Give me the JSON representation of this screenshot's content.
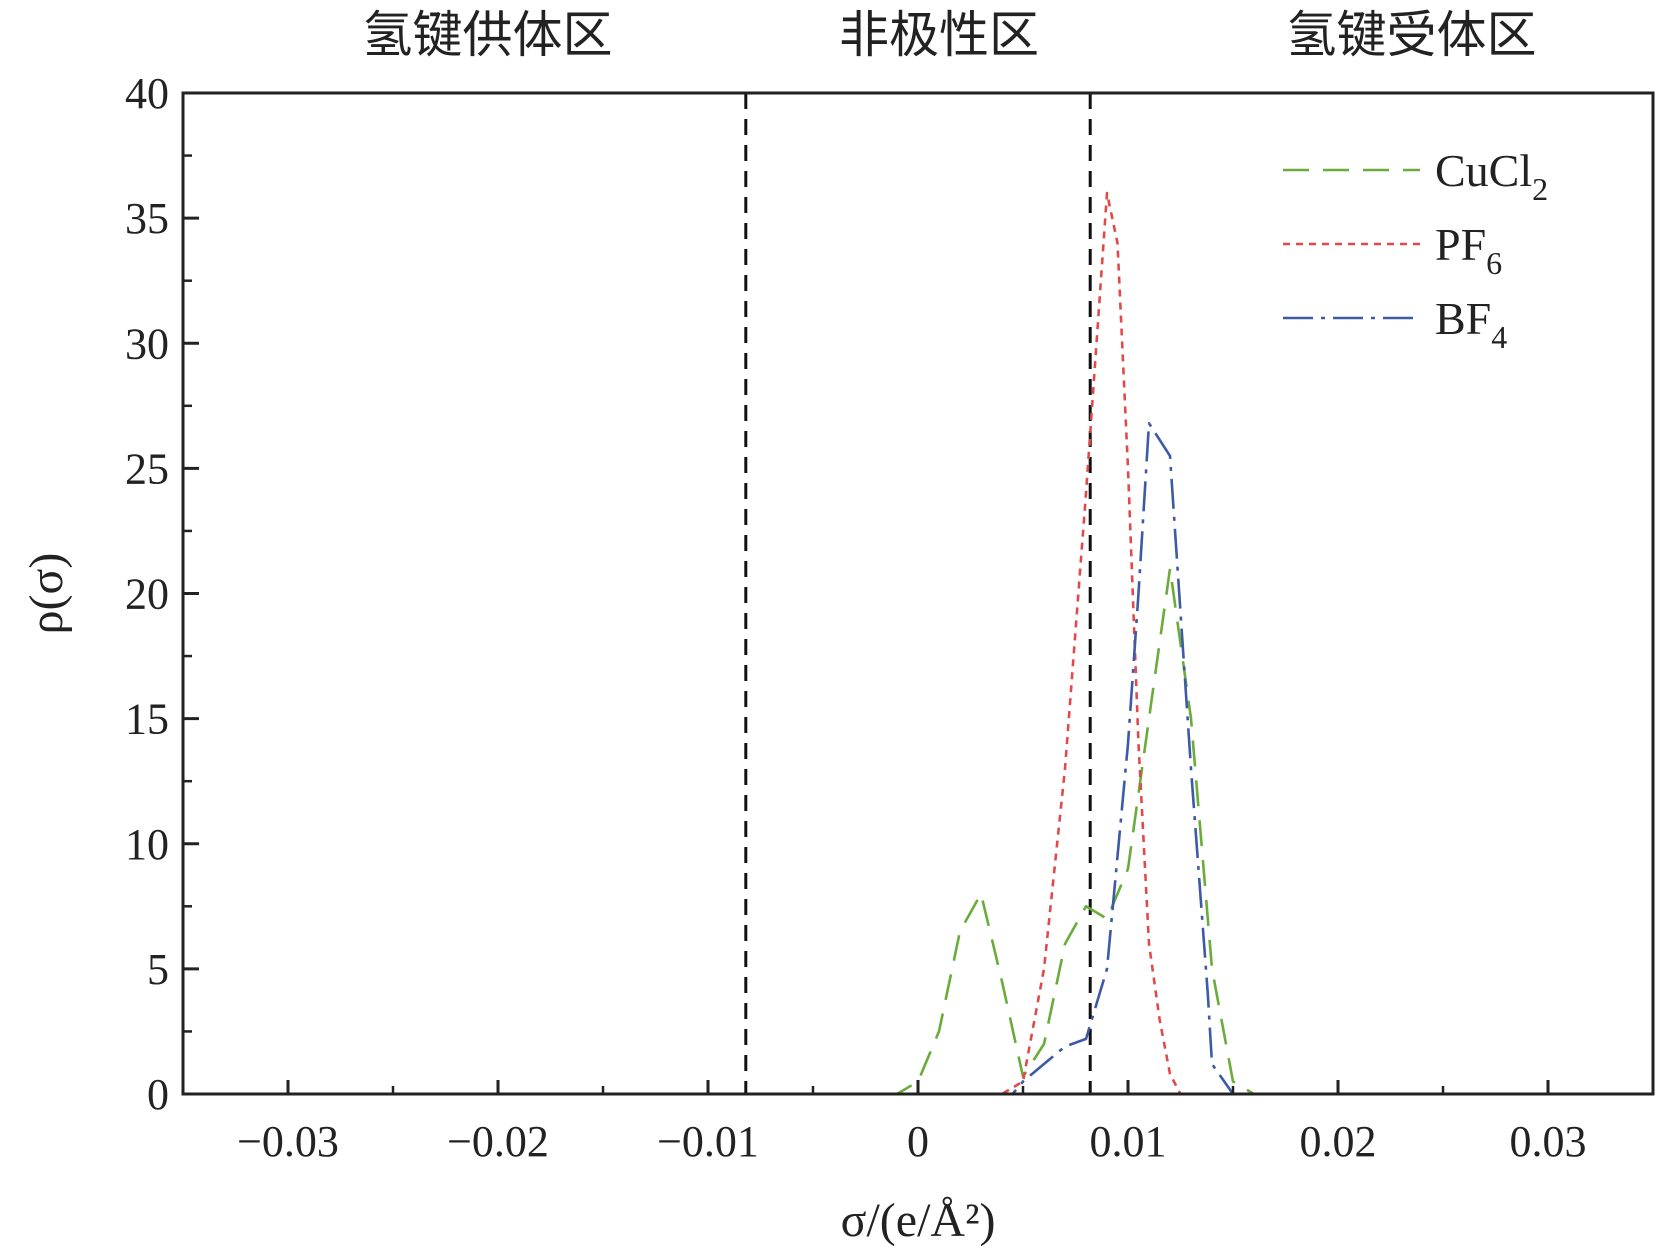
{
  "chart_data": {
    "type": "line",
    "xlabel": "σ/(e/Å²)",
    "ylabel": "ρ(σ)",
    "xlim": [
      -0.035,
      0.035
    ],
    "ylim": [
      0,
      40
    ],
    "x_ticks": [
      -0.03,
      -0.02,
      -0.01,
      0,
      0.01,
      0.02,
      0.03
    ],
    "x_tick_labels": [
      "−0.03",
      "−0.02",
      "−0.01",
      "0",
      "0.01",
      "0.02",
      "0.03"
    ],
    "y_ticks": [
      0,
      5,
      10,
      15,
      20,
      25,
      30,
      35,
      40
    ],
    "y_tick_labels": [
      "0",
      "5",
      "10",
      "15",
      "20",
      "25",
      "30",
      "35",
      "40"
    ],
    "region_boundaries": [
      -0.0082,
      0.0082
    ],
    "regions": [
      {
        "label": "氢键供体区",
        "x": -0.0205
      },
      {
        "label": "非极性区",
        "x": 0.001
      },
      {
        "label": "氢键受体区",
        "x": 0.0235
      }
    ],
    "legend_position": "top-right",
    "series": [
      {
        "name": "CuCl2",
        "color": "#6aac3a",
        "dash": "26,14",
        "points": [
          [
            -0.03,
            0
          ],
          [
            -0.01,
            0
          ],
          [
            -0.003,
            0
          ],
          [
            -0.001,
            0
          ],
          [
            0,
            0.5
          ],
          [
            0.001,
            2.5
          ],
          [
            0.002,
            6.5
          ],
          [
            0.003,
            8
          ],
          [
            0.004,
            4.5
          ],
          [
            0.005,
            0.7
          ],
          [
            0.006,
            2
          ],
          [
            0.007,
            6
          ],
          [
            0.008,
            7.5
          ],
          [
            0.009,
            7
          ],
          [
            0.01,
            9
          ],
          [
            0.011,
            15
          ],
          [
            0.012,
            21
          ],
          [
            0.013,
            15
          ],
          [
            0.014,
            5
          ],
          [
            0.015,
            0.5
          ],
          [
            0.016,
            0
          ],
          [
            0.03,
            0
          ]
        ]
      },
      {
        "name": "PF6",
        "color": "#e14a4a",
        "dash": "7,6",
        "points": [
          [
            -0.03,
            0
          ],
          [
            0.004,
            0
          ],
          [
            0.005,
            0.5
          ],
          [
            0.006,
            5
          ],
          [
            0.007,
            13
          ],
          [
            0.008,
            24
          ],
          [
            0.0085,
            30
          ],
          [
            0.009,
            36
          ],
          [
            0.0095,
            34
          ],
          [
            0.01,
            25
          ],
          [
            0.0105,
            14
          ],
          [
            0.011,
            6
          ],
          [
            0.0115,
            3
          ],
          [
            0.012,
            0.8
          ],
          [
            0.0125,
            0
          ],
          [
            0.013,
            0
          ],
          [
            0.03,
            0
          ]
        ]
      },
      {
        "name": "BF4",
        "color": "#3d5aa6",
        "dash": "30,8,4,8",
        "points": [
          [
            -0.03,
            0
          ],
          [
            0.0045,
            0
          ],
          [
            0.005,
            0.5
          ],
          [
            0.006,
            1.2
          ],
          [
            0.007,
            1.9
          ],
          [
            0.008,
            2.2
          ],
          [
            0.009,
            5
          ],
          [
            0.01,
            14
          ],
          [
            0.0105,
            20
          ],
          [
            0.011,
            26.8
          ],
          [
            0.012,
            25.5
          ],
          [
            0.013,
            13
          ],
          [
            0.0138,
            4
          ],
          [
            0.014,
            1.2
          ],
          [
            0.015,
            0
          ],
          [
            0.03,
            0
          ]
        ]
      }
    ],
    "legend": [
      {
        "base": "CuCl",
        "sub": "2"
      },
      {
        "base": "PF",
        "sub": "6"
      },
      {
        "base": "BF",
        "sub": "4"
      }
    ]
  }
}
